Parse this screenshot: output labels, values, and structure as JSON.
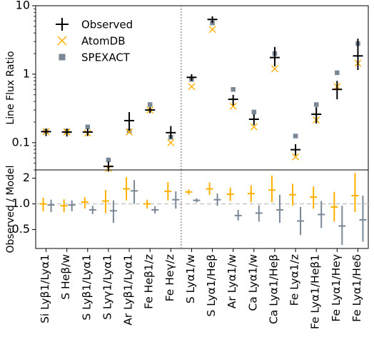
{
  "chart_data": [
    {
      "type": "scatter",
      "ylabel": "Line Flux Ratio",
      "yscale": "log",
      "ylim": [
        0.04,
        10
      ],
      "yticks": [
        {
          "value": 0.1,
          "label": "0.1"
        },
        {
          "value": 1,
          "label": "1"
        },
        {
          "value": 10,
          "label": "10"
        }
      ],
      "legend_position": "top-left",
      "divider_after_index": 6,
      "categories": [
        "Si Lyβ1/Lyα1",
        "S Heβ/w",
        "S Lyβ1/Lyα1",
        "S Lyγ1/Lyα1",
        "Ar Lyβ1/Lyα1",
        "Fe Heβ1/z",
        "Fe Heγ/z",
        "S Lyα1/w",
        "S Lyα1/Heβ",
        "Ar Lyα1/w",
        "Ca Lyα1/w",
        "Ca Lyα1/Heβ",
        "Fe Lyα1/z",
        "Fe Lyα1/Heβ1",
        "Fe Lyα1/Heγ",
        "Fe Lyα1/Heδ"
      ],
      "series": [
        {
          "name": "Observed",
          "color": "#000000",
          "marker": "errorbar",
          "values": [
            0.145,
            0.143,
            0.143,
            0.045,
            0.21,
            0.3,
            0.14,
            0.9,
            6.3,
            0.43,
            0.22,
            1.75,
            0.079,
            0.26,
            0.6,
            1.85
          ],
          "err_low": [
            0.125,
            0.123,
            0.125,
            0.038,
            0.15,
            0.27,
            0.115,
            0.8,
            5.6,
            0.35,
            0.18,
            1.3,
            0.065,
            0.19,
            0.43,
            1.15
          ],
          "err_high": [
            0.16,
            0.16,
            0.16,
            0.053,
            0.28,
            0.33,
            0.175,
            1.0,
            7.0,
            0.5,
            0.26,
            2.5,
            0.095,
            0.33,
            0.8,
            3.3
          ]
        },
        {
          "name": "AtomDB",
          "color": "#ffb000",
          "marker": "x",
          "values": [
            0.145,
            0.143,
            0.138,
            0.042,
            0.143,
            0.3,
            0.1,
            0.66,
            4.5,
            0.34,
            0.17,
            1.2,
            0.062,
            0.215,
            0.66,
            1.45
          ]
        },
        {
          "name": "SPEXACT",
          "color": "#7a8796",
          "marker": "square",
          "values": [
            0.148,
            0.148,
            0.17,
            0.056,
            0.148,
            0.36,
            0.12,
            0.84,
            5.6,
            0.6,
            0.28,
            2.0,
            0.125,
            0.36,
            1.05,
            2.8
          ]
        }
      ]
    },
    {
      "type": "scatter",
      "ylabel": "Observed / Model",
      "yscale": "log",
      "ylim": [
        0.3,
        2.5
      ],
      "yticks": [
        {
          "value": 0.5,
          "label": "0.5"
        },
        {
          "value": 1.0,
          "label": "1.0"
        },
        {
          "value": 2,
          "label": "2"
        }
      ],
      "reference_line": 1.0,
      "series": [
        {
          "name": "AtomDB",
          "color": "#ffb000",
          "values": [
            1.0,
            0.95,
            1.05,
            1.08,
            1.5,
            1.0,
            1.4,
            1.38,
            1.5,
            1.3,
            1.32,
            1.45,
            1.28,
            1.2,
            0.92,
            1.25
          ],
          "err_low": [
            0.82,
            0.8,
            0.88,
            0.78,
            1.1,
            0.88,
            1.1,
            1.28,
            1.28,
            1.08,
            1.05,
            1.05,
            0.95,
            0.88,
            0.62,
            0.8
          ],
          "err_high": [
            1.18,
            1.13,
            1.2,
            1.45,
            2.05,
            1.12,
            1.8,
            1.48,
            1.78,
            1.55,
            1.65,
            2.15,
            1.72,
            1.6,
            1.38,
            2.3
          ]
        },
        {
          "name": "SPEXACT",
          "color": "#7a8796",
          "values": [
            0.97,
            0.97,
            0.85,
            0.83,
            1.42,
            0.85,
            1.12,
            1.1,
            1.12,
            0.73,
            0.78,
            0.85,
            0.63,
            0.75,
            0.55,
            0.65
          ],
          "err_low": [
            0.8,
            0.82,
            0.76,
            0.6,
            1.0,
            0.77,
            0.88,
            1.04,
            0.95,
            0.64,
            0.62,
            0.6,
            0.43,
            0.52,
            0.33,
            0.36
          ],
          "err_high": [
            1.12,
            1.1,
            0.95,
            1.1,
            1.9,
            0.94,
            1.4,
            1.16,
            1.32,
            0.85,
            0.96,
            1.28,
            0.92,
            1.08,
            0.95,
            1.25
          ]
        }
      ]
    }
  ]
}
